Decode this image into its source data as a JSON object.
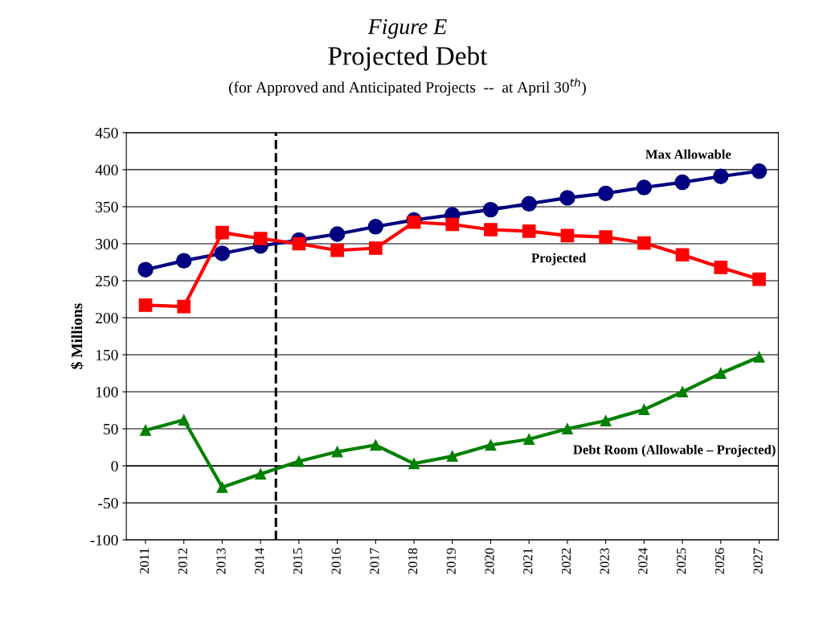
{
  "chart_data": {
    "type": "line",
    "title": "Projected Debt",
    "subtitle": "(for Approved and Anticipated Projects  --  at April 30$^{th}$)",
    "ylabel": "$ Millions",
    "annotations": [
      "Figure E"
    ],
    "x": [
      2011,
      2012,
      2013,
      2014,
      2015,
      2016,
      2017,
      2018,
      2019,
      2020,
      2021,
      2022,
      2023,
      2024,
      2025,
      2026,
      2027
    ],
    "xlim": [
      2010.5,
      2027.5
    ],
    "xticks": [
      2011,
      2012,
      2013,
      2014,
      2015,
      2016,
      2017,
      2018,
      2019,
      2020,
      2021,
      2022,
      2023,
      2024,
      2025,
      2026,
      2027
    ],
    "ylim": [
      -100,
      450
    ],
    "yticks": [
      -100,
      -50,
      0,
      50,
      100,
      150,
      200,
      250,
      300,
      350,
      400,
      450
    ],
    "grid": "y",
    "legend": false,
    "line_style": "solid",
    "ref_lines": [
      {
        "axis": "x",
        "value": 2014.4,
        "color": "#000000",
        "line_style": "dashed"
      }
    ],
    "series": [
      {
        "name": "Max Allowable",
        "color": "#000080",
        "marker": "circle",
        "values": [
          265,
          277,
          287,
          297,
          305,
          313,
          323,
          332,
          339,
          346,
          354,
          362,
          368,
          376,
          383,
          391,
          398
        ]
      },
      {
        "name": "Projected",
        "color": "#ff0000",
        "marker": "square",
        "values": [
          217,
          215,
          315,
          307,
          300,
          291,
          294,
          329,
          326,
          319,
          317,
          311,
          309,
          301,
          285,
          268,
          252
        ]
      },
      {
        "name": "Debt Room (Allowable – Projected)",
        "color": "#008000",
        "marker": "triangle",
        "values": [
          48,
          62,
          -29,
          -11,
          6,
          19,
          28,
          3,
          13,
          28,
          36,
          50,
          61,
          76,
          100,
          125,
          147
        ]
      }
    ]
  }
}
